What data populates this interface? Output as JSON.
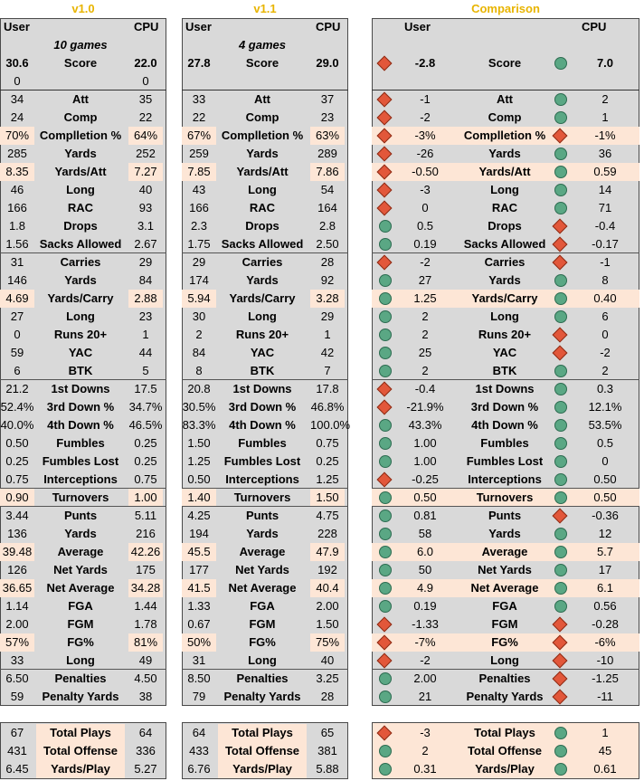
{
  "sheet": {
    "tables": [
      {
        "header": "v1.0",
        "col_user": "User",
        "col_cpu": "CPU",
        "games": "10 games",
        "score": {
          "user": "30.6",
          "label": "Score",
          "cpu": "22.0"
        },
        "zero_row": {
          "user": "0",
          "cpu": "0"
        },
        "rows": [
          {
            "user": "34",
            "label": "Att",
            "cpu": "35"
          },
          {
            "user": "24",
            "label": "Comp",
            "cpu": "22"
          },
          {
            "user": "70%",
            "label": "Complletion %",
            "cpu": "64%",
            "hl": true
          },
          {
            "user": "285",
            "label": "Yards",
            "cpu": "252"
          },
          {
            "user": "8.35",
            "label": "Yards/Att",
            "cpu": "7.27",
            "hl": true
          },
          {
            "user": "46",
            "label": "Long",
            "cpu": "40"
          },
          {
            "user": "166",
            "label": "RAC",
            "cpu": "93"
          },
          {
            "user": "1.8",
            "label": "Drops",
            "cpu": "3.1"
          },
          {
            "user": "1.56",
            "label": "Sacks Allowed",
            "cpu": "2.67"
          },
          {
            "user": "31",
            "label": "Carries",
            "cpu": "29"
          },
          {
            "user": "146",
            "label": "Yards",
            "cpu": "84"
          },
          {
            "user": "4.69",
            "label": "Yards/Carry",
            "cpu": "2.88",
            "hl": true
          },
          {
            "user": "27",
            "label": "Long",
            "cpu": "23"
          },
          {
            "user": "0",
            "label": "Runs 20+",
            "cpu": "1"
          },
          {
            "user": "59",
            "label": "YAC",
            "cpu": "44"
          },
          {
            "user": "6",
            "label": "BTK",
            "cpu": "5"
          },
          {
            "user": "21.2",
            "label": "1st Downs",
            "cpu": "17.5"
          },
          {
            "user": "52.4%",
            "label": "3rd Down %",
            "cpu": "34.7%"
          },
          {
            "user": "40.0%",
            "label": "4th Down %",
            "cpu": "46.5%"
          },
          {
            "user": "0.50",
            "label": "Fumbles",
            "cpu": "0.25"
          },
          {
            "user": "0.25",
            "label": "Fumbles Lost",
            "cpu": "0.25"
          },
          {
            "user": "0.75",
            "label": "Interceptions",
            "cpu": "0.75"
          },
          {
            "user": "0.90",
            "label": "Turnovers",
            "cpu": "1.00",
            "hl": true
          },
          {
            "user": "3.44",
            "label": "Punts",
            "cpu": "5.11"
          },
          {
            "user": "136",
            "label": "Yards",
            "cpu": "216"
          },
          {
            "user": "39.48",
            "label": "Average",
            "cpu": "42.26",
            "hl": true
          },
          {
            "user": "126",
            "label": "Net Yards",
            "cpu": "175"
          },
          {
            "user": "36.65",
            "label": "Net Average",
            "cpu": "34.28",
            "hl": true
          },
          {
            "user": "1.14",
            "label": "FGA",
            "cpu": "1.44"
          },
          {
            "user": "2.00",
            "label": "FGM",
            "cpu": "1.78"
          },
          {
            "user": "57%",
            "label": "FG%",
            "cpu": "81%",
            "hl": true
          },
          {
            "user": "33",
            "label": "Long",
            "cpu": "49"
          },
          {
            "user": "6.50",
            "label": "Penalties",
            "cpu": "4.50"
          },
          {
            "user": "59",
            "label": "Penalty Yards",
            "cpu": "38"
          }
        ],
        "totals": [
          {
            "user": "67",
            "label": "Total Plays",
            "cpu": "64"
          },
          {
            "user": "431",
            "label": "Total Offense",
            "cpu": "336"
          },
          {
            "user": "6.45",
            "label": "Yards/Play",
            "cpu": "5.27"
          }
        ]
      },
      {
        "header": "v1.1",
        "col_user": "User",
        "col_cpu": "CPU",
        "games": "4 games",
        "score": {
          "user": "27.8",
          "label": "Score",
          "cpu": "29.0"
        },
        "zero_row": {
          "user": "",
          "cpu": ""
        },
        "rows": [
          {
            "user": "33",
            "label": "Att",
            "cpu": "37"
          },
          {
            "user": "22",
            "label": "Comp",
            "cpu": "23"
          },
          {
            "user": "67%",
            "label": "Complletion %",
            "cpu": "63%",
            "hl": true
          },
          {
            "user": "259",
            "label": "Yards",
            "cpu": "289"
          },
          {
            "user": "7.85",
            "label": "Yards/Att",
            "cpu": "7.86",
            "hl": true
          },
          {
            "user": "43",
            "label": "Long",
            "cpu": "54"
          },
          {
            "user": "166",
            "label": "RAC",
            "cpu": "164"
          },
          {
            "user": "2.3",
            "label": "Drops",
            "cpu": "2.8"
          },
          {
            "user": "1.75",
            "label": "Sacks Allowed",
            "cpu": "2.50"
          },
          {
            "user": "29",
            "label": "Carries",
            "cpu": "28"
          },
          {
            "user": "174",
            "label": "Yards",
            "cpu": "92"
          },
          {
            "user": "5.94",
            "label": "Yards/Carry",
            "cpu": "3.28",
            "hl": true
          },
          {
            "user": "30",
            "label": "Long",
            "cpu": "29"
          },
          {
            "user": "2",
            "label": "Runs 20+",
            "cpu": "1"
          },
          {
            "user": "84",
            "label": "YAC",
            "cpu": "42"
          },
          {
            "user": "8",
            "label": "BTK",
            "cpu": "7"
          },
          {
            "user": "20.8",
            "label": "1st Downs",
            "cpu": "17.8"
          },
          {
            "user": "30.5%",
            "label": "3rd Down %",
            "cpu": "46.8%"
          },
          {
            "user": "83.3%",
            "label": "4th Down %",
            "cpu": "100.0%"
          },
          {
            "user": "1.50",
            "label": "Fumbles",
            "cpu": "0.75"
          },
          {
            "user": "1.25",
            "label": "Fumbles Lost",
            "cpu": "0.25"
          },
          {
            "user": "0.50",
            "label": "Interceptions",
            "cpu": "1.25"
          },
          {
            "user": "1.40",
            "label": "Turnovers",
            "cpu": "1.50",
            "hl": true
          },
          {
            "user": "4.25",
            "label": "Punts",
            "cpu": "4.75"
          },
          {
            "user": "194",
            "label": "Yards",
            "cpu": "228"
          },
          {
            "user": "45.5",
            "label": "Average",
            "cpu": "47.9",
            "hl": true
          },
          {
            "user": "177",
            "label": "Net Yards",
            "cpu": "192"
          },
          {
            "user": "41.5",
            "label": "Net Average",
            "cpu": "40.4",
            "hl": true
          },
          {
            "user": "1.33",
            "label": "FGA",
            "cpu": "2.00"
          },
          {
            "user": "0.67",
            "label": "FGM",
            "cpu": "1.50"
          },
          {
            "user": "50%",
            "label": "FG%",
            "cpu": "75%",
            "hl": true
          },
          {
            "user": "31",
            "label": "Long",
            "cpu": "40"
          },
          {
            "user": "8.50",
            "label": "Penalties",
            "cpu": "3.25"
          },
          {
            "user": "79",
            "label": "Penalty Yards",
            "cpu": "28"
          }
        ],
        "totals": [
          {
            "user": "64",
            "label": "Total Plays",
            "cpu": "65"
          },
          {
            "user": "433",
            "label": "Total Offense",
            "cpu": "381"
          },
          {
            "user": "6.76",
            "label": "Yards/Play",
            "cpu": "5.88"
          }
        ]
      }
    ],
    "comparison": {
      "header": "Comparison",
      "col_user": "User",
      "col_cpu": "CPU",
      "score": {
        "user_icon": "red-diamond",
        "user": "-2.8",
        "label": "Score",
        "cpu_icon": "green-circle",
        "cpu": "7.0"
      },
      "rows": [
        {
          "ui": "red-diamond",
          "user": "-1",
          "label": "Att",
          "ci": "green-circle",
          "cpu": "2"
        },
        {
          "ui": "red-diamond",
          "user": "-2",
          "label": "Comp",
          "ci": "green-circle",
          "cpu": "1"
        },
        {
          "ui": "red-diamond",
          "user": "-3%",
          "label": "Complletion %",
          "ci": "red-diamond",
          "cpu": "-1%",
          "hl": true
        },
        {
          "ui": "red-diamond",
          "user": "-26",
          "label": "Yards",
          "ci": "green-circle",
          "cpu": "36"
        },
        {
          "ui": "red-diamond",
          "user": "-0.50",
          "label": "Yards/Att",
          "ci": "green-circle",
          "cpu": "0.59",
          "hl": true
        },
        {
          "ui": "red-diamond",
          "user": "-3",
          "label": "Long",
          "ci": "green-circle",
          "cpu": "14"
        },
        {
          "ui": "red-diamond",
          "user": "0",
          "label": "RAC",
          "ci": "green-circle",
          "cpu": "71"
        },
        {
          "ui": "green-circle",
          "user": "0.5",
          "label": "Drops",
          "ci": "red-diamond",
          "cpu": "-0.4"
        },
        {
          "ui": "green-circle",
          "user": "0.19",
          "label": "Sacks Allowed",
          "ci": "red-diamond",
          "cpu": "-0.17"
        },
        {
          "ui": "red-diamond",
          "user": "-2",
          "label": "Carries",
          "ci": "red-diamond",
          "cpu": "-1"
        },
        {
          "ui": "green-circle",
          "user": "27",
          "label": "Yards",
          "ci": "green-circle",
          "cpu": "8"
        },
        {
          "ui": "green-circle",
          "user": "1.25",
          "label": "Yards/Carry",
          "ci": "green-circle",
          "cpu": "0.40",
          "hl": true
        },
        {
          "ui": "green-circle",
          "user": "2",
          "label": "Long",
          "ci": "green-circle",
          "cpu": "6"
        },
        {
          "ui": "green-circle",
          "user": "2",
          "label": "Runs 20+",
          "ci": "red-diamond",
          "cpu": "0"
        },
        {
          "ui": "green-circle",
          "user": "25",
          "label": "YAC",
          "ci": "red-diamond",
          "cpu": "-2"
        },
        {
          "ui": "green-circle",
          "user": "2",
          "label": "BTK",
          "ci": "green-circle",
          "cpu": "2"
        },
        {
          "ui": "red-diamond",
          "user": "-0.4",
          "label": "1st Downs",
          "ci": "green-circle",
          "cpu": "0.3"
        },
        {
          "ui": "red-diamond",
          "user": "-21.9%",
          "label": "3rd Down %",
          "ci": "green-circle",
          "cpu": "12.1%"
        },
        {
          "ui": "green-circle",
          "user": "43.3%",
          "label": "4th Down %",
          "ci": "green-circle",
          "cpu": "53.5%"
        },
        {
          "ui": "green-circle",
          "user": "1.00",
          "label": "Fumbles",
          "ci": "green-circle",
          "cpu": "0.5"
        },
        {
          "ui": "green-circle",
          "user": "1.00",
          "label": "Fumbles Lost",
          "ci": "green-circle",
          "cpu": "0"
        },
        {
          "ui": "red-diamond",
          "user": "-0.25",
          "label": "Interceptions",
          "ci": "green-circle",
          "cpu": "0.50"
        },
        {
          "ui": "green-circle",
          "user": "0.50",
          "label": "Turnovers",
          "ci": "green-circle",
          "cpu": "0.50",
          "hl": true
        },
        {
          "ui": "green-circle",
          "user": "0.81",
          "label": "Punts",
          "ci": "red-diamond",
          "cpu": "-0.36"
        },
        {
          "ui": "green-circle",
          "user": "58",
          "label": "Yards",
          "ci": "green-circle",
          "cpu": "12"
        },
        {
          "ui": "green-circle",
          "user": "6.0",
          "label": "Average",
          "ci": "green-circle",
          "cpu": "5.7",
          "hl": true
        },
        {
          "ui": "green-circle",
          "user": "50",
          "label": "Net Yards",
          "ci": "green-circle",
          "cpu": "17"
        },
        {
          "ui": "green-circle",
          "user": "4.9",
          "label": "Net Average",
          "ci": "green-circle",
          "cpu": "6.1",
          "hl": true
        },
        {
          "ui": "green-circle",
          "user": "0.19",
          "label": "FGA",
          "ci": "green-circle",
          "cpu": "0.56"
        },
        {
          "ui": "red-diamond",
          "user": "-1.33",
          "label": "FGM",
          "ci": "red-diamond",
          "cpu": "-0.28"
        },
        {
          "ui": "red-diamond",
          "user": "-7%",
          "label": "FG%",
          "ci": "red-diamond",
          "cpu": "-6%",
          "hl": true
        },
        {
          "ui": "red-diamond",
          "user": "-2",
          "label": "Long",
          "ci": "red-diamond",
          "cpu": "-10"
        },
        {
          "ui": "green-circle",
          "user": "2.00",
          "label": "Penalties",
          "ci": "red-diamond",
          "cpu": "-1.25"
        },
        {
          "ui": "green-circle",
          "user": "21",
          "label": "Penalty Yards",
          "ci": "red-diamond",
          "cpu": "-11"
        }
      ],
      "totals": [
        {
          "ui": "red-diamond",
          "user": "-3",
          "label": "Total Plays",
          "ci": "green-circle",
          "cpu": "1"
        },
        {
          "ui": "green-circle",
          "user": "2",
          "label": "Total Offense",
          "ci": "green-circle",
          "cpu": "45"
        },
        {
          "ui": "green-circle",
          "user": "0.31",
          "label": "Yards/Play",
          "ci": "green-circle",
          "cpu": "0.61"
        }
      ]
    },
    "colors": {
      "header_gold": "#e8b400",
      "cell_gray": "#d9d9d9",
      "highlight_peach": "#fde6d6",
      "icon_green": "#5aa784",
      "icon_red": "#e2573a"
    }
  }
}
